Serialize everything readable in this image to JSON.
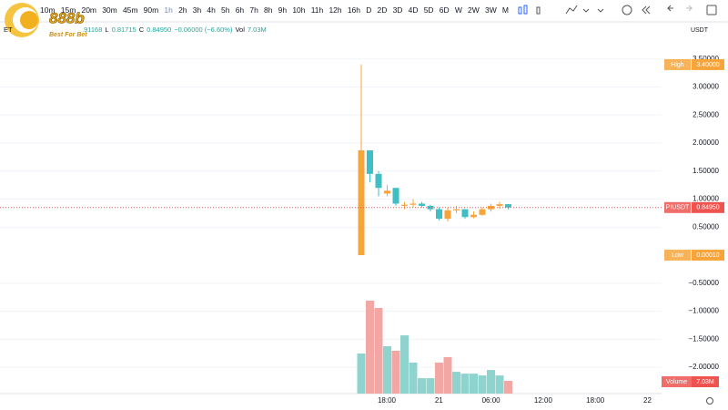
{
  "logo": {
    "title": "888b",
    "tagline": "Best For Bet"
  },
  "toolbar": {
    "timeframes": [
      "10m",
      "15m",
      "20m",
      "30m",
      "45m",
      "90m",
      "1h",
      "2h",
      "3h",
      "4h",
      "5h",
      "6h",
      "7h",
      "8h",
      "9h",
      "10h",
      "11h",
      "12h",
      "16h",
      "D",
      "2D",
      "3D",
      "4D",
      "5D",
      "6D",
      "W",
      "2W",
      "3W",
      "M"
    ]
  },
  "legend": {
    "symbol": "ET",
    "high": ".91168",
    "low_label": "L",
    "low": "0.81715",
    "close_label": "C",
    "close": "0.84950",
    "change": "−0.06000 (−6.60%)",
    "volume_label": "Vol",
    "volume": "7.03M"
  },
  "currency": "USDT",
  "chart_data": {
    "type": "candlestick",
    "ylim": [
      -2.47,
      3.87
    ],
    "yticks": [
      {
        "value": 3.5,
        "label": "3.50000"
      },
      {
        "value": 3,
        "label": "3.00000"
      },
      {
        "value": 2.5,
        "label": "2.50000"
      },
      {
        "value": 2,
        "label": "2.00000"
      },
      {
        "value": 1.5,
        "label": "1.50000"
      },
      {
        "value": 1,
        "label": "1.00000"
      },
      {
        "value": 0.5,
        "label": "0.50000"
      },
      {
        "value": -0.5,
        "label": "−0.50000"
      },
      {
        "value": -1,
        "label": "−1.00000"
      },
      {
        "value": -1.5,
        "label": "−1.50000"
      },
      {
        "value": -2,
        "label": "−2.00000"
      }
    ],
    "grid": true,
    "up_color": "#f7a53b",
    "down_color": "#3fbfc4",
    "time_labels": [
      "18:00",
      "21",
      "06:00",
      "12:00",
      "18:00",
      "22"
    ],
    "candles": {
      "open": [
        0.0001,
        1.87,
        1.45,
        1.1,
        1.2,
        0.88,
        0.9,
        0.92,
        0.88,
        0.82,
        0.65,
        0.8,
        0.82,
        0.68,
        0.72,
        0.82,
        0.88,
        0.9095
      ],
      "high": [
        3.4,
        1.87,
        1.5,
        1.25,
        1.2,
        0.95,
        1.0,
        0.95,
        0.9,
        0.85,
        0.85,
        0.88,
        0.82,
        0.78,
        0.85,
        0.92,
        0.95,
        0.91168
      ],
      "low": [
        0.0001,
        1.3,
        1.05,
        1.05,
        0.88,
        0.82,
        0.85,
        0.85,
        0.78,
        0.62,
        0.6,
        0.75,
        0.65,
        0.66,
        0.7,
        0.78,
        0.83,
        0.81715
      ],
      "close": [
        1.87,
        1.45,
        1.2,
        1.15,
        0.92,
        0.9,
        0.92,
        0.88,
        0.82,
        0.65,
        0.8,
        0.82,
        0.68,
        0.72,
        0.82,
        0.88,
        0.9095,
        0.8495
      ]
    },
    "volume": {
      "values": [
        22100000,
        51200000,
        47200000,
        26100000,
        23600000,
        32100000,
        17100000,
        8500000,
        8500000,
        17100000,
        20100000,
        12000000,
        11000000,
        11000000,
        10000000,
        13000000,
        10000000,
        7030000
      ],
      "colors": [
        "#8fd3cf",
        "#f3a7a5",
        "#f3a7a5",
        "#8fd3cf",
        "#f3a7a5",
        "#8fd3cf",
        "#8fd3cf",
        "#8fd3cf",
        "#8fd3cf",
        "#f3a7a5",
        "#f3a7a5",
        "#8fd3cf",
        "#8fd3cf",
        "#8fd3cf",
        "#8fd3cf",
        "#8fd3cf",
        "#8fd3cf",
        "#f3a7a5"
      ]
    },
    "badges": [
      {
        "name": "High",
        "value": 3.4,
        "value_label": "3.40000",
        "color": "#f7a53b"
      },
      {
        "name": "PIUSDT",
        "value": 0.8495,
        "value_label": "0.84950",
        "color": "#ef5350"
      },
      {
        "name": "Low",
        "value": 0.0001,
        "value_label": "0.00010",
        "color": "#f7a53b"
      }
    ],
    "volume_badge": {
      "name": "Volume",
      "value": 7030000,
      "value_label": "7.03M",
      "color": "#ef5350"
    }
  }
}
